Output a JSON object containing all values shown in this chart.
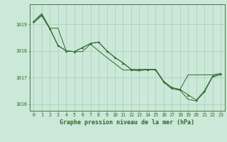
{
  "title": "Graphe pression niveau de la mer (hPa)",
  "hours": [
    0,
    1,
    2,
    3,
    4,
    5,
    6,
    7,
    8,
    9,
    10,
    11,
    12,
    13,
    14,
    15,
    16,
    17,
    18,
    19,
    20,
    21,
    22,
    23
  ],
  "x_labels": [
    "0",
    "1",
    "2",
    "3",
    "4",
    "5",
    "6",
    "7",
    "8",
    "9",
    "10",
    "11",
    "12",
    "13",
    "14",
    "15",
    "16",
    "17",
    "18",
    "19",
    "20",
    "21",
    "22",
    "23"
  ],
  "main_y": [
    1019.1,
    1019.35,
    1018.85,
    1018.2,
    1018.0,
    1017.97,
    1018.12,
    1018.28,
    1018.33,
    1018.0,
    1017.75,
    1017.55,
    1017.3,
    1017.3,
    1017.3,
    1017.3,
    1016.85,
    1016.62,
    1016.55,
    1016.35,
    1016.15,
    1016.5,
    1017.05,
    1017.15
  ],
  "upper_y": [
    1019.1,
    1019.4,
    1018.85,
    1018.85,
    1018.0,
    1017.97,
    1018.12,
    1018.28,
    1018.33,
    1018.0,
    1017.75,
    1017.55,
    1017.3,
    1017.3,
    1017.3,
    1017.3,
    1016.85,
    1016.62,
    1016.55,
    1017.1,
    1017.1,
    1017.1,
    1017.1,
    1017.15
  ],
  "lower_y": [
    1019.05,
    1019.32,
    1018.82,
    1018.2,
    1018.0,
    1017.97,
    1017.97,
    1018.25,
    1018.0,
    1017.75,
    1017.52,
    1017.28,
    1017.28,
    1017.25,
    1017.3,
    1017.28,
    1016.82,
    1016.57,
    1016.52,
    1016.18,
    1016.12,
    1016.45,
    1017.02,
    1017.1
  ],
  "ylim": [
    1015.75,
    1019.75
  ],
  "yticks": [
    1016,
    1017,
    1018,
    1019
  ],
  "xlim": [
    -0.5,
    23.5
  ],
  "line_color": "#2d6a2d",
  "bg_color": "#cce8d8",
  "grid_color": "#a0c8b0",
  "axis_color": "#2d6a2d",
  "title_color": "#2d6a2d",
  "title_fontsize": 6.0,
  "tick_fontsize": 4.8,
  "linewidth": 0.7,
  "marker_size": 2.0
}
